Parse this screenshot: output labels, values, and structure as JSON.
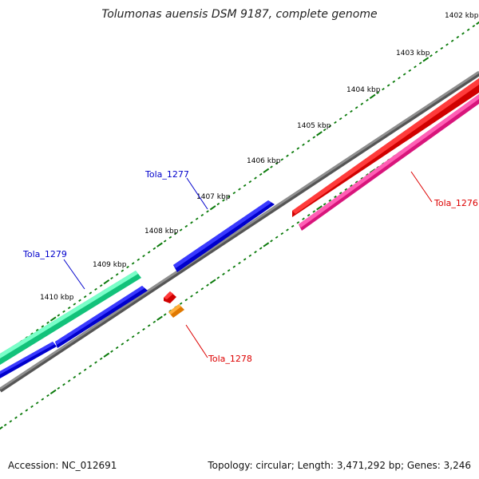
{
  "title": "Tolumonas auensis DSM 9187, complete genome",
  "footer": {
    "accession": "Accession: NC_012691",
    "summary": "Topology: circular; Length: 3,471,292 bp; Genes: 3,246"
  },
  "ruler_labels": [
    "1402 kbp",
    "1403 kbp",
    "1404 kbp",
    "1405 kbp",
    "1406 kbp",
    "1407 kbp",
    "1408 kbp",
    "1409 kbp",
    "1410 kbp"
  ],
  "genes": [
    {
      "name": "Tola_1276",
      "color": "#ff0000",
      "strand": "forward"
    },
    {
      "name": "Tola_1276",
      "color": "#ff2a95",
      "strand": "forward"
    },
    {
      "name": "Tola_1277",
      "color": "#0000ee",
      "strand": "reverse"
    },
    {
      "name": "Tola_1278",
      "color": "#ee0000",
      "strand": "forward"
    },
    {
      "name": "Tola_1278",
      "color": "#ff8c00",
      "strand": "forward"
    },
    {
      "name": "Tola_1279",
      "color": "#1ee896",
      "strand": "reverse"
    }
  ],
  "gene_labels": [
    {
      "text": "Tola_1276",
      "color": "#dd0000"
    },
    {
      "text": "Tola_1277",
      "color": "#0000cc"
    },
    {
      "text": "Tola_1278",
      "color": "#dd0000"
    },
    {
      "text": "Tola_1279",
      "color": "#0000cc"
    }
  ],
  "colors": {
    "backbone": "#808080",
    "tick": "#0a7a0a",
    "forward_label": "#dd0000",
    "reverse_label": "#0000cc"
  }
}
